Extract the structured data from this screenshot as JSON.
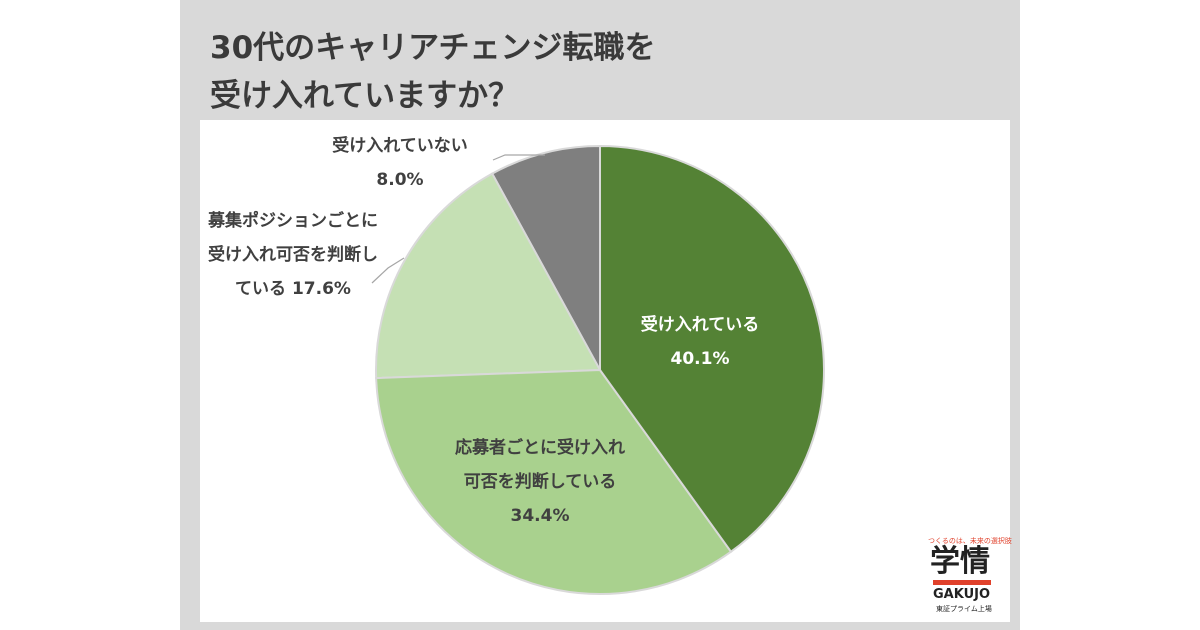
{
  "chart_data": {
    "type": "pie",
    "title": [
      "30代のキャリアチェンジ転職を",
      "受け入れていますか？"
    ],
    "categories": [
      "受け入れている",
      "応募者ごとに受け入れ可否を判断している",
      "募集ポジションごとに受け入れ可否を判断している",
      "受け入れていない"
    ],
    "values": [
      40.1,
      34.4,
      17.6,
      8.0
    ],
    "value_labels": [
      "40.1%",
      "34.4%",
      "17.6%",
      "8.0%"
    ],
    "colors": [
      "#548235",
      "#a9d18e",
      "#c5e0b4",
      "#7f7f7f"
    ]
  },
  "logo": {
    "tagline": "つくるのは、未来の選択肢",
    "mark": "学情",
    "name": "GAKUJO",
    "listing": "東証プライム上場"
  }
}
